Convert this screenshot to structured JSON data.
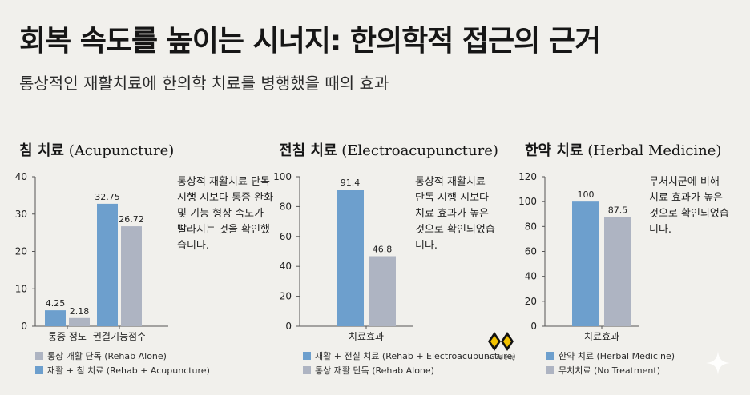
{
  "title": "회복 속도를 높이는 시너지: 한의학적 접근의 근거",
  "subtitle": "통상적인 재활치료에 한의학 치료를 병행했을 때의 효과",
  "colors": {
    "blue": "#6d9fcd",
    "gray": "#aeb4c2",
    "axis": "#555555",
    "text": "#222222"
  },
  "panels": [
    {
      "title_ko": "침 치료",
      "title_en": "(Acupuncture)",
      "note": "통상적 재활치료 단독 시행 시보다 통증 완화 및 기능 형상 속도가 빨라지는 것을 확인했습니다.",
      "legend": [
        "통상 개활 단독 (Rehab Alone)",
        "재활 + 침 치료 (Rehab + Acupuncture)"
      ]
    },
    {
      "title_ko": "전침 치료",
      "title_en": "(Electroacupuncture)",
      "note": "통상적 재활치료 단독 시행 시보다 치료 효과가 높은 것으로 확인되었습니다.",
      "legend": [
        "재활 + 전칠 치료 (Rehab + Electroacupuncture)",
        "통상 재활 단독 (Rehab Alone)"
      ]
    },
    {
      "title_ko": "한약 치료",
      "title_en": "(Herbal Medicine)",
      "note": "무처치군에 비해 치료 효과가 높은 것으로 확인되었습니다.",
      "legend": [
        "한약 치료 (Herbal Medicine)",
        "무치치료 (No Treatment)"
      ]
    }
  ],
  "brand": {
    "text": "365 소통 한의원",
    "icon": "diamond-logo-icon"
  },
  "chart_data": [
    {
      "type": "bar",
      "categories": [
        "통증 정도",
        "권결기능점수"
      ],
      "series": [
        {
          "name": "재활 + 침 치료 (Rehab + Acupuncture)",
          "values": [
            4.25,
            32.75
          ],
          "labels": [
            "4.25",
            "32.75"
          ],
          "color": "#6d9fcd"
        },
        {
          "name": "통상 개활 단독 (Rehab Alone)",
          "values": [
            2.18,
            26.72
          ],
          "labels": [
            "2.18",
            "26.72"
          ],
          "color": "#aeb4c2"
        }
      ],
      "ylim": [
        0,
        40
      ],
      "yticks": [
        0,
        10,
        20,
        30,
        40
      ],
      "grid": false,
      "legend": "bottom"
    },
    {
      "type": "bar",
      "categories": [
        "치료효과"
      ],
      "series": [
        {
          "name": "재활 + 전칠 치료 (Rehab + Electroacupuncture)",
          "values": [
            91.4
          ],
          "labels": [
            "91.4"
          ],
          "color": "#6d9fcd"
        },
        {
          "name": "통상 재활 단독 (Rehab Alone)",
          "values": [
            46.8
          ],
          "labels": [
            "46.8"
          ],
          "color": "#aeb4c2"
        }
      ],
      "ylim": [
        0,
        100
      ],
      "yticks": [
        0,
        20,
        40,
        60,
        80,
        100
      ],
      "grid": false,
      "legend": "bottom"
    },
    {
      "type": "bar",
      "categories": [
        "치료효과"
      ],
      "series": [
        {
          "name": "한약 치료 (Herbal Medicine)",
          "values": [
            100
          ],
          "labels": [
            "100"
          ],
          "color": "#6d9fcd"
        },
        {
          "name": "무치치료 (No Treatment)",
          "values": [
            87.5
          ],
          "labels": [
            "87.5"
          ],
          "color": "#aeb4c2"
        }
      ],
      "ylim": [
        0,
        120
      ],
      "yticks": [
        0,
        20,
        40,
        60,
        80,
        100,
        120
      ],
      "grid": false,
      "legend": "bottom"
    }
  ]
}
